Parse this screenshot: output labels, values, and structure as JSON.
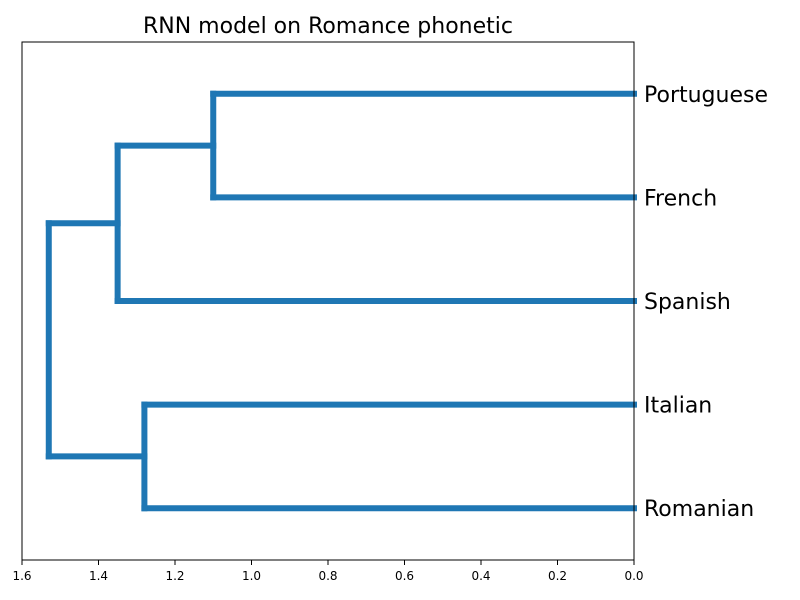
{
  "chart_data": {
    "type": "dendrogram",
    "title": "RNN model on Romance phonetic",
    "orientation": "left",
    "leaves": [
      "Portuguese",
      "French",
      "Spanish",
      "Italian",
      "Romanian"
    ],
    "merges": [
      {
        "left": "Portuguese",
        "right": "French",
        "height": 1.1
      },
      {
        "left": "Portuguese+French",
        "right": "Spanish",
        "height": 1.35
      },
      {
        "left": "Italian",
        "right": "Romanian",
        "height": 1.28
      },
      {
        "left": "Portuguese+French+Spanish",
        "right": "Italian+Romanian",
        "height": 1.53
      }
    ],
    "xlim": [
      1.6,
      0.0
    ],
    "xticks": [
      "1.6",
      "1.4",
      "1.2",
      "1.0",
      "0.8",
      "0.6",
      "0.4",
      "0.2",
      "0.0"
    ],
    "line_color": "#1f77b4",
    "xlabel": "",
    "ylabel": ""
  }
}
